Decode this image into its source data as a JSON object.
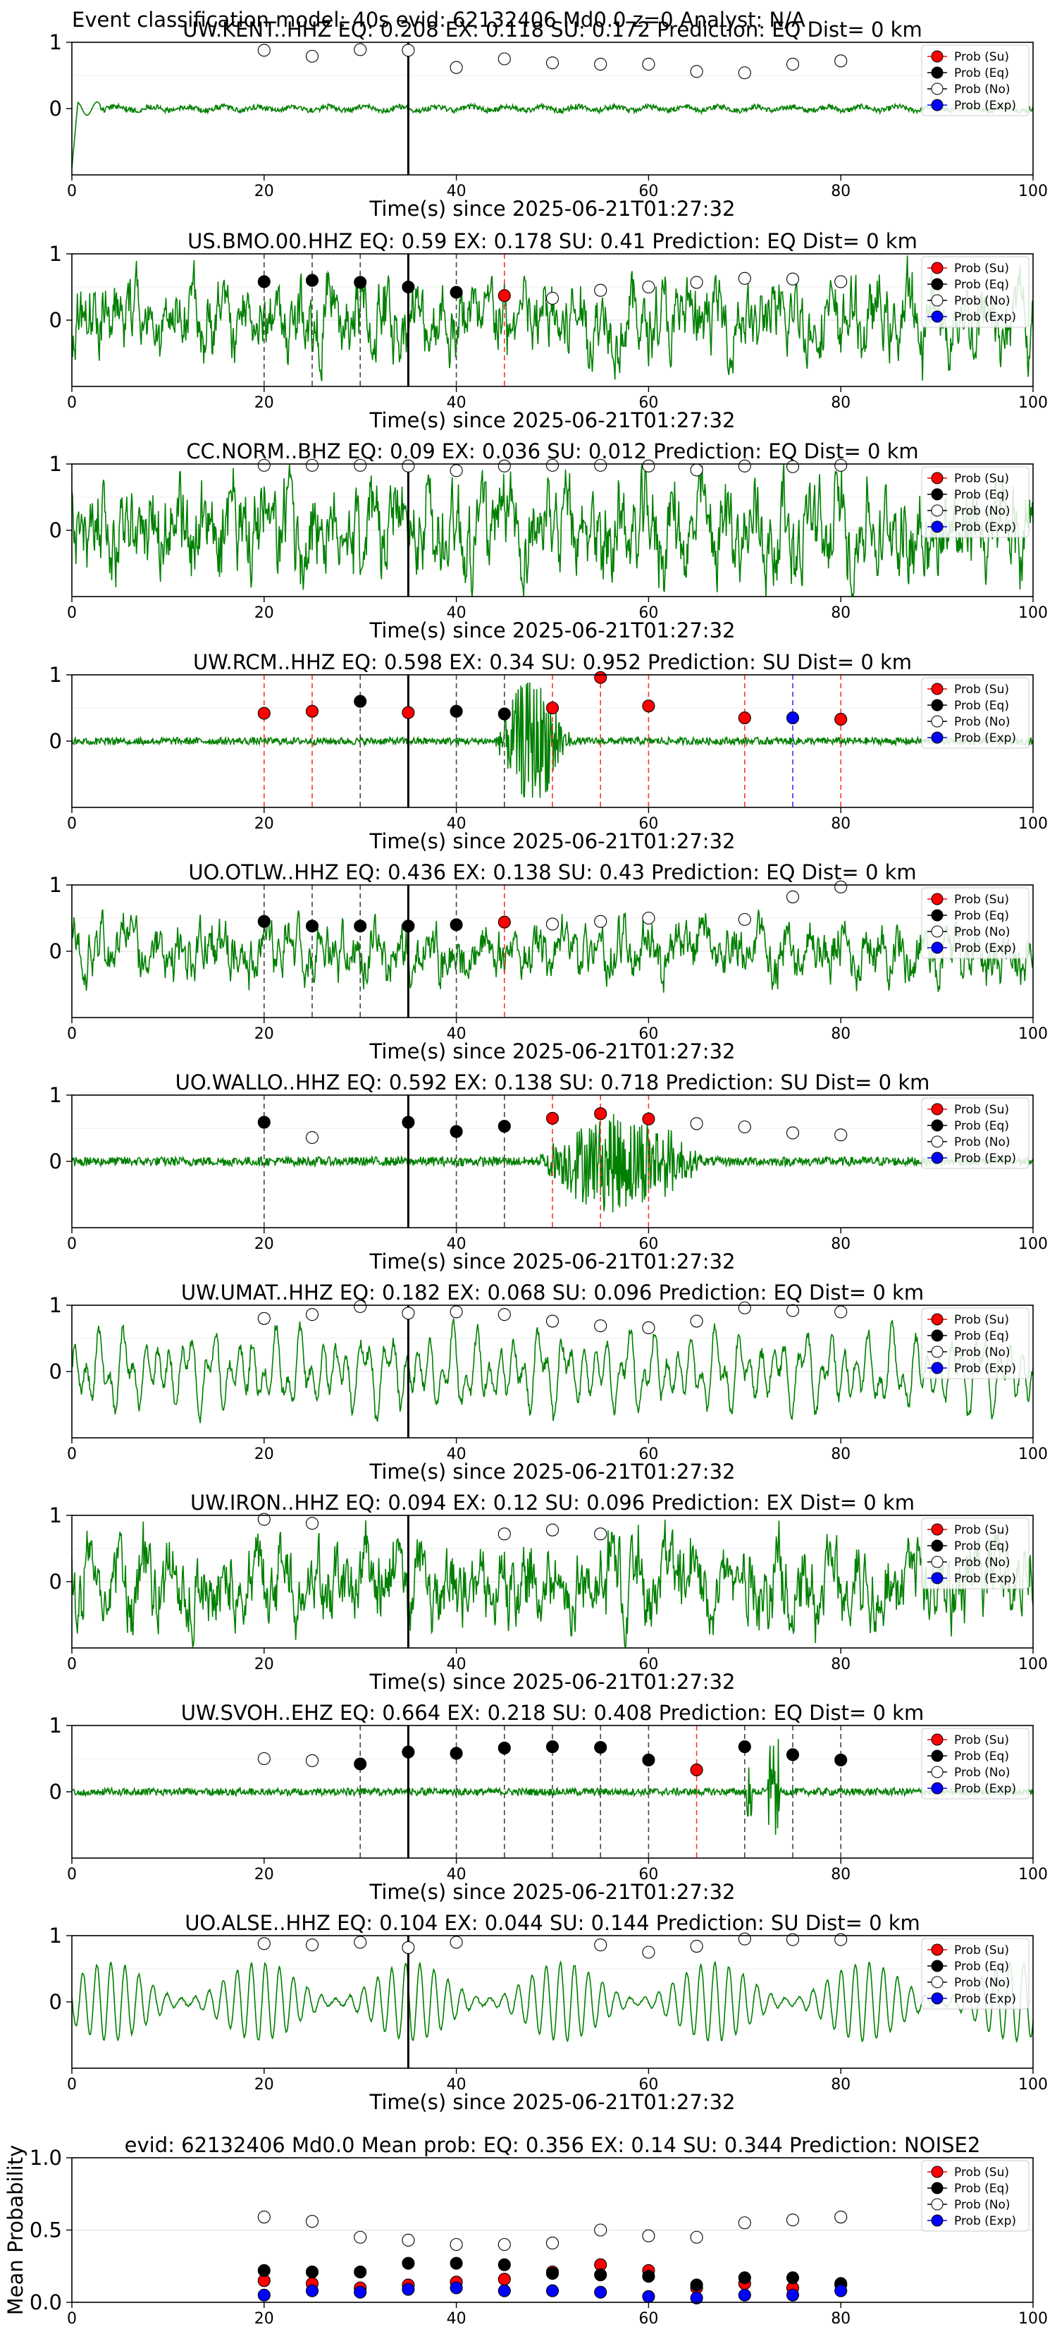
{
  "figure_title": "Event classification model: 40s evid: 62132406 Md0.0 z=0 Analyst: N/A",
  "legend_labels": [
    "Prob (Su)",
    "Prob (Eq)",
    "Prob (No)",
    "Prob (Exp)"
  ],
  "colors": {
    "waveform": "#008000",
    "su": "#ff0000",
    "eq": "#000000",
    "no": "#ffffff",
    "exp": "#0000ff",
    "line_su": "#ff3333",
    "line_eq": "#444444",
    "line_exp": "#3333ff"
  },
  "x_ticks": [
    0,
    20,
    40,
    60,
    80,
    100
  ],
  "window_centers": [
    20,
    25,
    30,
    35,
    40,
    45,
    50,
    55,
    60,
    65,
    70,
    75,
    80
  ],
  "arrival_time": 35,
  "chart_data": [
    {
      "type": "scatter",
      "title": "UW.KENT..HHZ   EQ: 0.208  EX: 0.118  SU: 0.172   Prediction: EQ    Dist= 0 km",
      "xlabel": "Time(s) since 2025-06-21T01:27:32",
      "xlim": [
        0,
        100
      ],
      "ylim": [
        -1,
        1
      ],
      "yticks": [
        0,
        1
      ],
      "wave": {
        "seed": 1,
        "amp": 0.06,
        "style": "quiet"
      },
      "points": [
        {
          "x": 20,
          "y": 0.88,
          "c": "no"
        },
        {
          "x": 25,
          "y": 0.79,
          "c": "no"
        },
        {
          "x": 30,
          "y": 0.89,
          "c": "no"
        },
        {
          "x": 35,
          "y": 0.88,
          "c": "no"
        },
        {
          "x": 40,
          "y": 0.62,
          "c": "no"
        },
        {
          "x": 45,
          "y": 0.75,
          "c": "no"
        },
        {
          "x": 50,
          "y": 0.69,
          "c": "no"
        },
        {
          "x": 55,
          "y": 0.67,
          "c": "no"
        },
        {
          "x": 60,
          "y": 0.67,
          "c": "no"
        },
        {
          "x": 65,
          "y": 0.56,
          "c": "no"
        },
        {
          "x": 70,
          "y": 0.54,
          "c": "no"
        },
        {
          "x": 75,
          "y": 0.67,
          "c": "no"
        },
        {
          "x": 80,
          "y": 0.72,
          "c": "no"
        }
      ]
    },
    {
      "type": "scatter",
      "title": "US.BMO.00.HHZ   EQ: 0.59  EX: 0.178  SU: 0.41   Prediction: EQ    Dist= 0 km",
      "xlabel": "Time(s) since 2025-06-21T01:27:32",
      "xlim": [
        0,
        100
      ],
      "ylim": [
        -1,
        1
      ],
      "yticks": [
        0,
        1
      ],
      "wave": {
        "seed": 2,
        "amp": 0.55,
        "style": "noisy"
      },
      "points": [
        {
          "x": 20,
          "y": 0.58,
          "c": "eq"
        },
        {
          "x": 25,
          "y": 0.6,
          "c": "eq"
        },
        {
          "x": 30,
          "y": 0.57,
          "c": "eq"
        },
        {
          "x": 35,
          "y": 0.5,
          "c": "eq"
        },
        {
          "x": 40,
          "y": 0.42,
          "c": "eq"
        },
        {
          "x": 45,
          "y": 0.37,
          "c": "su"
        },
        {
          "x": 50,
          "y": 0.33,
          "c": "no"
        },
        {
          "x": 55,
          "y": 0.45,
          "c": "no"
        },
        {
          "x": 60,
          "y": 0.5,
          "c": "no"
        },
        {
          "x": 65,
          "y": 0.57,
          "c": "no"
        },
        {
          "x": 70,
          "y": 0.63,
          "c": "no"
        },
        {
          "x": 75,
          "y": 0.62,
          "c": "no"
        },
        {
          "x": 80,
          "y": 0.58,
          "c": "no"
        }
      ]
    },
    {
      "type": "scatter",
      "title": "CC.NORM..BHZ   EQ: 0.09  EX: 0.036  SU: 0.012   Prediction: EQ    Dist= 0 km",
      "xlabel": "Time(s) since 2025-06-21T01:27:32",
      "xlim": [
        0,
        100
      ],
      "ylim": [
        -1,
        1
      ],
      "yticks": [
        0,
        1
      ],
      "wave": {
        "seed": 3,
        "amp": 0.7,
        "style": "noisy"
      },
      "points": [
        {
          "x": 20,
          "y": 0.98,
          "c": "no"
        },
        {
          "x": 25,
          "y": 0.98,
          "c": "no"
        },
        {
          "x": 30,
          "y": 0.98,
          "c": "no"
        },
        {
          "x": 35,
          "y": 0.97,
          "c": "no"
        },
        {
          "x": 40,
          "y": 0.9,
          "c": "no"
        },
        {
          "x": 45,
          "y": 0.97,
          "c": "no"
        },
        {
          "x": 50,
          "y": 0.98,
          "c": "no"
        },
        {
          "x": 55,
          "y": 0.98,
          "c": "no"
        },
        {
          "x": 60,
          "y": 0.97,
          "c": "no"
        },
        {
          "x": 65,
          "y": 0.91,
          "c": "no"
        },
        {
          "x": 70,
          "y": 0.97,
          "c": "no"
        },
        {
          "x": 75,
          "y": 0.96,
          "c": "no"
        },
        {
          "x": 80,
          "y": 0.98,
          "c": "no"
        }
      ]
    },
    {
      "type": "scatter",
      "title": "UW.RCM..HHZ   EQ: 0.598  EX: 0.34  SU: 0.952   Prediction: SU    Dist= 0 km",
      "xlabel": "Time(s) since 2025-06-21T01:27:32",
      "xlim": [
        0,
        100
      ],
      "ylim": [
        -1,
        1
      ],
      "yticks": [
        0,
        1
      ],
      "wave": {
        "seed": 4,
        "amp": 0.08,
        "style": "burst",
        "burst": [
          44,
          52,
          0.95
        ]
      },
      "points": [
        {
          "x": 20,
          "y": 0.42,
          "c": "su"
        },
        {
          "x": 25,
          "y": 0.45,
          "c": "su"
        },
        {
          "x": 30,
          "y": 0.6,
          "c": "eq"
        },
        {
          "x": 35,
          "y": 0.43,
          "c": "su"
        },
        {
          "x": 40,
          "y": 0.45,
          "c": "eq"
        },
        {
          "x": 45,
          "y": 0.41,
          "c": "eq"
        },
        {
          "x": 50,
          "y": 0.5,
          "c": "su"
        },
        {
          "x": 55,
          "y": 0.96,
          "c": "su"
        },
        {
          "x": 60,
          "y": 0.53,
          "c": "su"
        },
        {
          "x": 70,
          "y": 0.35,
          "c": "su"
        },
        {
          "x": 75,
          "y": 0.35,
          "c": "exp"
        },
        {
          "x": 80,
          "y": 0.33,
          "c": "su"
        }
      ]
    },
    {
      "type": "scatter",
      "title": "UO.OTLW..HHZ   EQ: 0.436  EX: 0.138  SU: 0.43   Prediction: EQ    Dist= 0 km",
      "xlabel": "Time(s) since 2025-06-21T01:27:32",
      "xlim": [
        0,
        100
      ],
      "ylim": [
        -1,
        1
      ],
      "yticks": [
        0,
        1
      ],
      "wave": {
        "seed": 5,
        "amp": 0.4,
        "style": "noisy"
      },
      "points": [
        {
          "x": 20,
          "y": 0.45,
          "c": "eq"
        },
        {
          "x": 25,
          "y": 0.38,
          "c": "eq"
        },
        {
          "x": 30,
          "y": 0.38,
          "c": "eq"
        },
        {
          "x": 35,
          "y": 0.38,
          "c": "eq"
        },
        {
          "x": 40,
          "y": 0.4,
          "c": "eq"
        },
        {
          "x": 45,
          "y": 0.44,
          "c": "su"
        },
        {
          "x": 50,
          "y": 0.41,
          "c": "no"
        },
        {
          "x": 55,
          "y": 0.45,
          "c": "no"
        },
        {
          "x": 60,
          "y": 0.5,
          "c": "no"
        },
        {
          "x": 70,
          "y": 0.48,
          "c": "no"
        },
        {
          "x": 75,
          "y": 0.82,
          "c": "no"
        },
        {
          "x": 80,
          "y": 0.97,
          "c": "no"
        }
      ]
    },
    {
      "type": "scatter",
      "title": "UO.WALLO..HHZ   EQ: 0.592  EX: 0.138  SU: 0.718   Prediction: SU    Dist= 0 km",
      "xlabel": "Time(s) since 2025-06-21T01:27:32",
      "xlim": [
        0,
        100
      ],
      "ylim": [
        -1,
        1
      ],
      "yticks": [
        0,
        1
      ],
      "wave": {
        "seed": 6,
        "amp": 0.1,
        "style": "burst",
        "burst": [
          48,
          66,
          0.75
        ]
      },
      "points": [
        {
          "x": 20,
          "y": 0.59,
          "c": "eq"
        },
        {
          "x": 25,
          "y": 0.36,
          "c": "no"
        },
        {
          "x": 35,
          "y": 0.59,
          "c": "eq"
        },
        {
          "x": 40,
          "y": 0.45,
          "c": "eq"
        },
        {
          "x": 45,
          "y": 0.53,
          "c": "eq"
        },
        {
          "x": 50,
          "y": 0.65,
          "c": "su"
        },
        {
          "x": 55,
          "y": 0.72,
          "c": "su"
        },
        {
          "x": 60,
          "y": 0.64,
          "c": "su"
        },
        {
          "x": 65,
          "y": 0.57,
          "c": "no"
        },
        {
          "x": 70,
          "y": 0.52,
          "c": "no"
        },
        {
          "x": 75,
          "y": 0.43,
          "c": "no"
        },
        {
          "x": 80,
          "y": 0.4,
          "c": "no"
        }
      ]
    },
    {
      "type": "scatter",
      "title": "UW.UMAT..HHZ   EQ: 0.182  EX: 0.068  SU: 0.096   Prediction: EQ    Dist= 0 km",
      "xlabel": "Time(s) since 2025-06-21T01:27:32",
      "xlim": [
        0,
        100
      ],
      "ylim": [
        -1,
        1
      ],
      "yticks": [
        0,
        1
      ],
      "wave": {
        "seed": 7,
        "amp": 0.5,
        "style": "wavy"
      },
      "points": [
        {
          "x": 20,
          "y": 0.8,
          "c": "no"
        },
        {
          "x": 25,
          "y": 0.86,
          "c": "no"
        },
        {
          "x": 30,
          "y": 0.98,
          "c": "no"
        },
        {
          "x": 35,
          "y": 0.88,
          "c": "no"
        },
        {
          "x": 40,
          "y": 0.9,
          "c": "no"
        },
        {
          "x": 45,
          "y": 0.86,
          "c": "no"
        },
        {
          "x": 50,
          "y": 0.76,
          "c": "no"
        },
        {
          "x": 55,
          "y": 0.69,
          "c": "no"
        },
        {
          "x": 60,
          "y": 0.66,
          "c": "no"
        },
        {
          "x": 65,
          "y": 0.76,
          "c": "no"
        },
        {
          "x": 70,
          "y": 0.96,
          "c": "no"
        },
        {
          "x": 75,
          "y": 0.92,
          "c": "no"
        },
        {
          "x": 80,
          "y": 0.9,
          "c": "no"
        }
      ]
    },
    {
      "type": "scatter",
      "title": "UW.IRON..HHZ   EQ: 0.094  EX: 0.12  SU: 0.096   Prediction: EX    Dist= 0 km",
      "xlabel": "Time(s) since 2025-06-21T01:27:32",
      "xlim": [
        0,
        100
      ],
      "ylim": [
        -1,
        1
      ],
      "yticks": [
        0,
        1
      ],
      "wave": {
        "seed": 8,
        "amp": 0.6,
        "style": "noisy"
      },
      "points": [
        {
          "x": 20,
          "y": 0.94,
          "c": "no"
        },
        {
          "x": 25,
          "y": 0.88,
          "c": "no"
        },
        {
          "x": 45,
          "y": 0.72,
          "c": "no"
        },
        {
          "x": 50,
          "y": 0.78,
          "c": "no"
        },
        {
          "x": 55,
          "y": 0.72,
          "c": "no"
        }
      ]
    },
    {
      "type": "scatter",
      "title": "UW.SVOH..EHZ   EQ: 0.664  EX: 0.218  SU: 0.408   Prediction: EQ    Dist= 0 km",
      "xlabel": "Time(s) since 2025-06-21T01:27:32",
      "xlim": [
        0,
        100
      ],
      "ylim": [
        -1,
        1
      ],
      "yticks": [
        0,
        1
      ],
      "wave": {
        "seed": 9,
        "amp": 0.07,
        "style": "spiky"
      },
      "points": [
        {
          "x": 20,
          "y": 0.5,
          "c": "no"
        },
        {
          "x": 25,
          "y": 0.47,
          "c": "no"
        },
        {
          "x": 30,
          "y": 0.42,
          "c": "eq"
        },
        {
          "x": 35,
          "y": 0.6,
          "c": "eq"
        },
        {
          "x": 40,
          "y": 0.58,
          "c": "eq"
        },
        {
          "x": 45,
          "y": 0.66,
          "c": "eq"
        },
        {
          "x": 50,
          "y": 0.68,
          "c": "eq"
        },
        {
          "x": 55,
          "y": 0.67,
          "c": "eq"
        },
        {
          "x": 60,
          "y": 0.48,
          "c": "eq"
        },
        {
          "x": 65,
          "y": 0.33,
          "c": "su"
        },
        {
          "x": 70,
          "y": 0.68,
          "c": "eq"
        },
        {
          "x": 75,
          "y": 0.56,
          "c": "eq"
        },
        {
          "x": 80,
          "y": 0.48,
          "c": "eq"
        }
      ]
    },
    {
      "type": "scatter",
      "title": "UO.ALSE..HHZ   EQ: 0.104  EX: 0.044  SU: 0.144   Prediction: SU    Dist= 0 km",
      "xlabel": "Time(s) since 2025-06-21T01:27:32",
      "xlim": [
        0,
        100
      ],
      "ylim": [
        -1,
        1
      ],
      "yticks": [
        0,
        1
      ],
      "wave": {
        "seed": 10,
        "amp": 0.45,
        "style": "sine"
      },
      "points": [
        {
          "x": 20,
          "y": 0.88,
          "c": "no"
        },
        {
          "x": 25,
          "y": 0.86,
          "c": "no"
        },
        {
          "x": 30,
          "y": 0.9,
          "c": "no"
        },
        {
          "x": 35,
          "y": 0.82,
          "c": "no"
        },
        {
          "x": 40,
          "y": 0.9,
          "c": "no"
        },
        {
          "x": 55,
          "y": 0.86,
          "c": "no"
        },
        {
          "x": 60,
          "y": 0.75,
          "c": "no"
        },
        {
          "x": 65,
          "y": 0.84,
          "c": "no"
        },
        {
          "x": 70,
          "y": 0.95,
          "c": "no"
        },
        {
          "x": 75,
          "y": 0.94,
          "c": "no"
        },
        {
          "x": 80,
          "y": 0.94,
          "c": "no"
        }
      ]
    },
    {
      "type": "scatter",
      "title": "evid: 62132406  Md0.0   Mean prob:   EQ: 0.356  EX: 0.14  SU: 0.344   Prediction: NOISE2",
      "xlabel": "",
      "ylabel": "Mean Probability",
      "xlim": [
        0,
        100
      ],
      "ylim": [
        0,
        1
      ],
      "yticks": [
        0,
        0.5,
        1
      ],
      "series": [
        {
          "name": "Prob (Su)",
          "c": "su",
          "x": [
            20,
            25,
            30,
            35,
            40,
            45,
            50,
            55,
            60,
            65,
            70,
            75,
            80
          ],
          "y": [
            0.15,
            0.13,
            0.1,
            0.12,
            0.14,
            0.16,
            0.21,
            0.26,
            0.22,
            0.1,
            0.13,
            0.1,
            0.12
          ]
        },
        {
          "name": "Prob (Eq)",
          "c": "eq",
          "x": [
            20,
            25,
            30,
            35,
            40,
            45,
            50,
            55,
            60,
            65,
            70,
            75,
            80
          ],
          "y": [
            0.22,
            0.21,
            0.21,
            0.27,
            0.27,
            0.26,
            0.2,
            0.19,
            0.18,
            0.12,
            0.17,
            0.17,
            0.13
          ]
        },
        {
          "name": "Prob (No)",
          "c": "no",
          "x": [
            20,
            25,
            30,
            35,
            40,
            45,
            50,
            55,
            60,
            65,
            70,
            75,
            80
          ],
          "y": [
            0.59,
            0.56,
            0.45,
            0.43,
            0.4,
            0.4,
            0.41,
            0.5,
            0.46,
            0.45,
            0.55,
            0.57,
            0.59
          ]
        },
        {
          "name": "Prob (Exp)",
          "c": "exp",
          "x": [
            20,
            25,
            30,
            35,
            40,
            45,
            50,
            55,
            60,
            65,
            70,
            75,
            80
          ],
          "y": [
            0.05,
            0.08,
            0.07,
            0.09,
            0.1,
            0.08,
            0.08,
            0.07,
            0.04,
            0.03,
            0.05,
            0.05,
            0.08
          ]
        }
      ]
    }
  ]
}
